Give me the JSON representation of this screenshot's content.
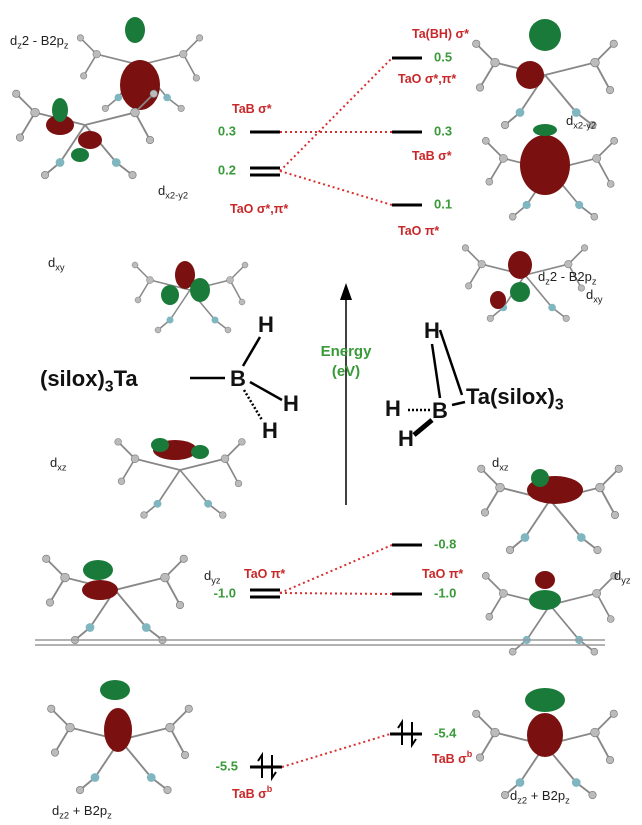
{
  "center": {
    "left_molecule": {
      "metal": [
        {
          "t": "(silox)"
        },
        {
          "sub": "3"
        },
        {
          "t": "Ta"
        }
      ],
      "boron": "B",
      "h": [
        "H",
        "H",
        "H"
      ]
    },
    "right_molecule": {
      "h": [
        "H",
        "H",
        "H"
      ],
      "boron": "B",
      "metal": [
        {
          "t": "Ta(silox)"
        },
        {
          "sub": "3"
        }
      ]
    },
    "axis": {
      "title": "Energy",
      "unit": "(eV)"
    }
  },
  "left": {
    "levels": [
      {
        "energy": "0.3",
        "label": [
          {
            "t": "TaB σ*"
          }
        ]
      },
      {
        "energy": "0.2",
        "label": [
          {
            "t": "TaO σ*,π*"
          }
        ]
      },
      {
        "energy": "-1.0",
        "label": [
          {
            "t": "TaO π*"
          }
        ]
      },
      {
        "energy": "-5.5",
        "label": [
          {
            "t": "TaB σ"
          },
          {
            "sup": "b"
          }
        ]
      }
    ],
    "orbitals": [
      [
        {
          "t": "d"
        },
        {
          "sub": "z"
        },
        {
          "t": "2 - B2p"
        },
        {
          "sub": "z"
        }
      ],
      [
        {
          "t": "d"
        },
        {
          "sub": "x2-y2"
        }
      ],
      [
        {
          "t": "d"
        },
        {
          "sub": "xy"
        }
      ],
      [
        {
          "t": "d"
        },
        {
          "sub": "xz"
        }
      ],
      [
        {
          "t": "d"
        },
        {
          "sub": "yz"
        }
      ],
      [
        {
          "t": "d"
        },
        {
          "sub": "z2"
        },
        {
          "t": " + B2p"
        },
        {
          "sub": "z"
        }
      ]
    ]
  },
  "right": {
    "levels": [
      {
        "energy": "0.5",
        "label": [
          {
            "t": "Ta(BH) σ*"
          }
        ]
      },
      {
        "energy": "0.3",
        "label": [
          {
            "t": "TaO σ*,π*"
          }
        ]
      },
      {
        "energy": "0.1",
        "label": [
          {
            "t": "TaB σ*"
          }
        ]
      },
      {
        "energy": "-0.8",
        "label": [
          {
            "t": "TaO π*"
          }
        ]
      },
      {
        "energy": "-1.0",
        "label": [
          {
            "t": "TaO π*"
          }
        ]
      },
      {
        "energy": "-5.4",
        "label": [
          {
            "t": "TaB σ"
          },
          {
            "sup": "b"
          }
        ]
      }
    ],
    "orbitals": [
      [
        {
          "t": "d"
        },
        {
          "sub": "x2-y2"
        }
      ],
      [
        {
          "t": "d"
        },
        {
          "sub": "z"
        },
        {
          "t": "2 - B2p"
        },
        {
          "sub": "z"
        }
      ],
      [
        {
          "t": "d"
        },
        {
          "sub": "xy"
        }
      ],
      [
        {
          "t": "d"
        },
        {
          "sub": "xz"
        }
      ],
      [
        {
          "t": "d"
        },
        {
          "sub": "yz"
        }
      ],
      [
        {
          "t": "d"
        },
        {
          "sub": "z2"
        },
        {
          "t": " + B2p"
        },
        {
          "sub": "z"
        }
      ]
    ]
  }
}
